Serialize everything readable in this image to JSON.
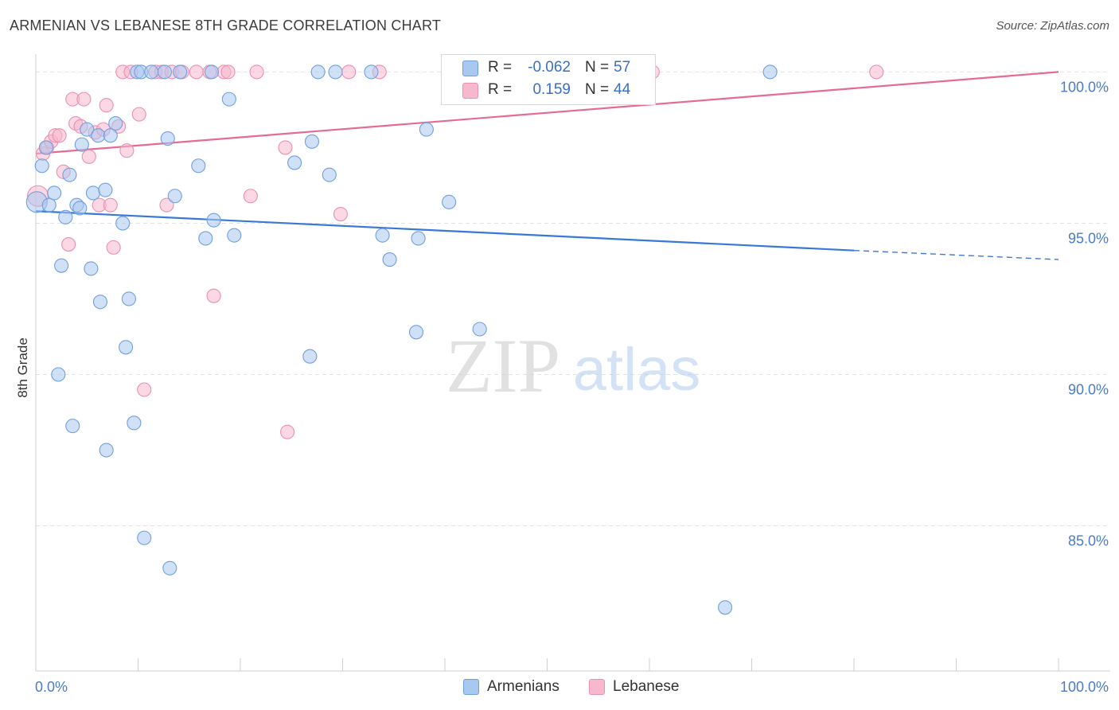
{
  "title": "ARMENIAN VS LEBANESE 8TH GRADE CORRELATION CHART",
  "source": "Source: ZipAtlas.com",
  "watermark": {
    "zip": "ZIP",
    "atlas": "atlas"
  },
  "legend": {
    "rows": [
      {
        "r_label": "R =",
        "r_value": "-0.062",
        "n_label": "N =",
        "n_value": "57"
      },
      {
        "r_label": "R =",
        "r_value": "0.159",
        "n_label": "N =",
        "n_value": "44"
      }
    ]
  },
  "bottom_legend": {
    "armenians": "Armenians",
    "lebanese": "Lebanese"
  },
  "colors": {
    "armenians_fill": "#a9c8f0",
    "armenians_stroke": "#6f9fe0",
    "armenians_line": "#3a78d8",
    "lebanese_fill": "#f7b8cd",
    "lebanese_stroke": "#ec8fb0",
    "lebanese_line": "#e46a97",
    "tick_label": "#4a7cc9",
    "grid": "#e2e2e2"
  },
  "chart_data": {
    "type": "scatter",
    "title": "ARMENIAN VS LEBANESE 8TH GRADE CORRELATION CHART",
    "xlabel": "",
    "ylabel": "8th Grade",
    "xlim": [
      0,
      100
    ],
    "ylim": [
      80.2,
      100.8
    ],
    "x_tick_labels": [
      "0.0%",
      "100.0%"
    ],
    "y_ticks": [
      85,
      90,
      95,
      100
    ],
    "y_tick_labels": [
      "85.0%",
      "90.0%",
      "95.0%",
      "100.0%"
    ],
    "grid": true,
    "series": [
      {
        "name": "Armenians",
        "r": -0.062,
        "n": 57,
        "trend": {
          "x0": 0,
          "y0": 95.4,
          "x1": 80,
          "y1": 94.1,
          "dashed_to_x": 100,
          "dashed_to_y": 93.8
        },
        "points": [
          [
            0.1,
            95.7
          ],
          [
            0.6,
            96.9
          ],
          [
            1.0,
            97.5
          ],
          [
            1.3,
            95.6
          ],
          [
            1.8,
            96.0
          ],
          [
            2.2,
            90.0
          ],
          [
            2.5,
            93.6
          ],
          [
            2.9,
            95.2
          ],
          [
            3.3,
            96.6
          ],
          [
            3.6,
            88.3
          ],
          [
            4.0,
            95.6
          ],
          [
            4.3,
            95.5
          ],
          [
            4.5,
            97.6
          ],
          [
            5.0,
            98.1
          ],
          [
            5.4,
            93.5
          ],
          [
            5.6,
            96.0
          ],
          [
            6.1,
            97.9
          ],
          [
            6.3,
            92.4
          ],
          [
            6.8,
            96.1
          ],
          [
            6.9,
            87.5
          ],
          [
            7.3,
            97.9
          ],
          [
            7.8,
            98.3
          ],
          [
            8.5,
            95.0
          ],
          [
            8.8,
            90.9
          ],
          [
            9.1,
            92.5
          ],
          [
            9.6,
            88.4
          ],
          [
            9.9,
            100.0
          ],
          [
            10.3,
            100.0
          ],
          [
            10.6,
            84.6
          ],
          [
            11.3,
            100.0
          ],
          [
            12.6,
            100.0
          ],
          [
            12.9,
            97.8
          ],
          [
            13.1,
            83.6
          ],
          [
            13.6,
            95.9
          ],
          [
            14.1,
            100.0
          ],
          [
            15.9,
            96.9
          ],
          [
            16.6,
            94.5
          ],
          [
            17.2,
            100.0
          ],
          [
            17.4,
            95.1
          ],
          [
            18.9,
            99.1
          ],
          [
            19.4,
            94.6
          ],
          [
            25.3,
            97.0
          ],
          [
            26.8,
            90.6
          ],
          [
            27.0,
            97.7
          ],
          [
            27.6,
            100.0
          ],
          [
            28.7,
            96.6
          ],
          [
            29.3,
            100.0
          ],
          [
            32.8,
            100.0
          ],
          [
            33.9,
            94.6
          ],
          [
            34.6,
            93.8
          ],
          [
            37.2,
            91.4
          ],
          [
            37.4,
            94.5
          ],
          [
            38.2,
            98.1
          ],
          [
            40.4,
            95.7
          ],
          [
            43.4,
            91.5
          ],
          [
            67.4,
            82.3
          ],
          [
            71.8,
            100.0
          ]
        ]
      },
      {
        "name": "Lebanese",
        "r": 0.159,
        "n": 44,
        "trend": {
          "x0": 0,
          "y0": 97.3,
          "x1": 100,
          "y1": 100.0
        },
        "points": [
          [
            0.2,
            95.9
          ],
          [
            0.7,
            97.3
          ],
          [
            1.1,
            97.5
          ],
          [
            1.5,
            97.7
          ],
          [
            1.9,
            97.9
          ],
          [
            2.3,
            97.9
          ],
          [
            2.7,
            96.7
          ],
          [
            3.2,
            94.3
          ],
          [
            3.6,
            99.1
          ],
          [
            3.9,
            98.3
          ],
          [
            4.4,
            98.2
          ],
          [
            4.7,
            99.1
          ],
          [
            5.2,
            97.2
          ],
          [
            5.8,
            98.0
          ],
          [
            6.2,
            95.6
          ],
          [
            6.6,
            98.1
          ],
          [
            6.9,
            98.9
          ],
          [
            7.3,
            95.6
          ],
          [
            7.6,
            94.2
          ],
          [
            8.1,
            98.2
          ],
          [
            8.5,
            100.0
          ],
          [
            8.9,
            97.4
          ],
          [
            9.3,
            100.0
          ],
          [
            10.1,
            98.6
          ],
          [
            10.6,
            89.5
          ],
          [
            11.7,
            100.0
          ],
          [
            12.3,
            100.0
          ],
          [
            12.8,
            95.6
          ],
          [
            13.3,
            100.0
          ],
          [
            14.3,
            100.0
          ],
          [
            15.7,
            100.0
          ],
          [
            17.0,
            100.0
          ],
          [
            17.4,
            92.6
          ],
          [
            18.4,
            100.0
          ],
          [
            18.8,
            100.0
          ],
          [
            21.0,
            95.9
          ],
          [
            21.6,
            100.0
          ],
          [
            24.4,
            97.5
          ],
          [
            24.6,
            88.1
          ],
          [
            29.8,
            95.3
          ],
          [
            30.6,
            100.0
          ],
          [
            33.6,
            100.0
          ],
          [
            60.3,
            100.0
          ],
          [
            82.2,
            100.0
          ]
        ]
      }
    ]
  }
}
